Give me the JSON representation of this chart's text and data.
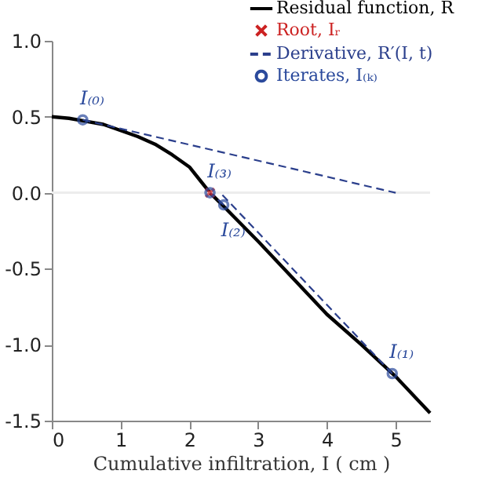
{
  "chart_data": {
    "type": "line",
    "xlabel": "Cumulative infiltration, I ( cm )",
    "xlim": [
      0,
      5.5
    ],
    "xticks": [
      0,
      1,
      2,
      3,
      4,
      5
    ],
    "ylim": [
      -1.5,
      1
    ],
    "yticks": [
      {
        "value": -1.5,
        "label": "-1.5"
      },
      {
        "value": -1,
        "label": "-1.0"
      },
      {
        "value": -0.5,
        "label": "-0.5"
      },
      {
        "value": 0,
        "label": "0.0"
      },
      {
        "value": 0.5,
        "label": "0.5"
      },
      {
        "value": 1,
        "label": "1.0"
      }
    ],
    "legend": "top right",
    "grid": false,
    "ref_lines": [
      {
        "axis": "y",
        "value": 0,
        "color": "#ececec"
      }
    ],
    "series": [
      {
        "name": "Residual function, R",
        "color": "#000000",
        "line_style": "solid",
        "x": [
          0,
          0.25,
          0.5,
          0.75,
          1,
          1.25,
          1.5,
          1.75,
          2,
          2.3,
          2.5,
          3,
          3.5,
          4,
          4.5,
          5,
          5.5
        ],
        "values": [
          0.5,
          0.49,
          0.47,
          0.45,
          0.41,
          0.37,
          0.32,
          0.25,
          0.17,
          0.0,
          -0.09,
          -0.32,
          -0.56,
          -0.8,
          -1.0,
          -1.21,
          -1.45
        ]
      },
      {
        "name": "Root, Iᵣ",
        "type": "scatter",
        "marker": "cross",
        "color": "#cc2222",
        "x": [
          2.3
        ],
        "values": [
          0.0
        ]
      },
      {
        "name": "Derivative, R′(I, t)",
        "color": "#2b3f8c",
        "line_style": "dashed",
        "x": [
          0.45,
          5.0
        ],
        "values": [
          0.48,
          0.0
        ]
      },
      {
        "color": "#2b3f8c",
        "line_style": "dashed",
        "x": [
          4.95,
          2.45
        ],
        "values": [
          -1.19,
          0.0
        ]
      },
      {
        "color": "#2b3f8c",
        "line_style": "dashed",
        "x": [
          2.5,
          2.3
        ],
        "values": [
          -0.08,
          0.0
        ]
      },
      {
        "name": "Iterates, I₍ₖ₎",
        "type": "scatter",
        "marker": "circle",
        "color": "#2b4a9c",
        "x": [
          0.45,
          4.95,
          2.5,
          2.3
        ],
        "values": [
          0.48,
          -1.19,
          -0.08,
          0.0
        ]
      }
    ],
    "annotations": [
      {
        "text": "I₍₀₎",
        "x": 0.45,
        "y": 0.48
      },
      {
        "text": "I₍₃₎",
        "x": 2.3,
        "y": 0.0
      },
      {
        "text": "I₍₂₎",
        "x": 2.5,
        "y": -0.08
      },
      {
        "text": "I₍₁₎",
        "x": 4.95,
        "y": -1.19
      }
    ]
  }
}
